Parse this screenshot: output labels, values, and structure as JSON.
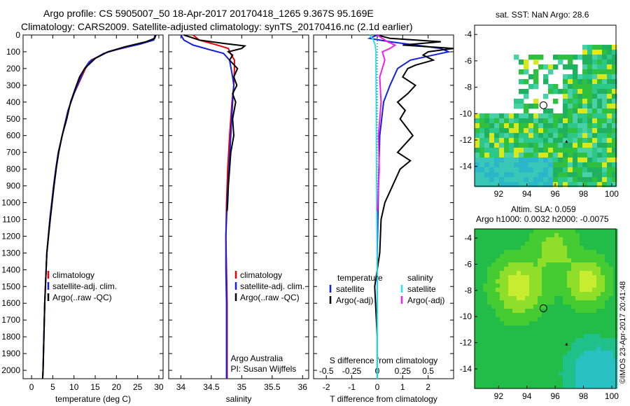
{
  "header": {
    "title_line1": "Argo profile: CS 5905007_50 18-Apr-2017 20170418_1265 9.367S 95.169E",
    "title_line2": "Climatology: CARS2009. Satellite-adjusted climatology: synTS_20170416.nc (2.1d earlier)"
  },
  "colors": {
    "climatology": "#e8000b",
    "satellite": "#1420e0",
    "argo": "#000000",
    "satellite_s": "#25e3f0",
    "argo_s": "#f020f0"
  },
  "chart_data": [
    {
      "id": "temperature",
      "type": "line",
      "xlabel": "temperature (deg C)",
      "ylabel": "",
      "xlim": [
        -2,
        31
      ],
      "ylim": [
        2050,
        0
      ],
      "xticks": [
        0,
        5,
        10,
        15,
        20,
        25,
        30
      ],
      "yticks": [
        0,
        100,
        200,
        300,
        400,
        500,
        600,
        700,
        800,
        900,
        1000,
        1100,
        1200,
        1300,
        1400,
        1500,
        1600,
        1700,
        1800,
        1900,
        2000
      ],
      "legend": [
        "climatology",
        "satellite-adj. clim.",
        "Argo(..raw -QC)"
      ],
      "series": [
        {
          "name": "climatology",
          "color": "climatology",
          "x": [
            29.1,
            28.8,
            26,
            22,
            18,
            14,
            12.7,
            11.8,
            10,
            8.6,
            7.2,
            6.3,
            5.7,
            5.2,
            4.3,
            3.6,
            3.1,
            2.9,
            2.7,
            2.6
          ],
          "y": [
            0,
            25,
            50,
            75,
            100,
            150,
            200,
            250,
            350,
            450,
            600,
            700,
            800,
            900,
            1100,
            1300,
            1600,
            1800,
            2000,
            2050
          ]
        },
        {
          "name": "satellite-adj. clim.",
          "color": "satellite",
          "x": [
            29.1,
            28.8,
            25.5,
            21,
            17,
            13.6,
            12.5,
            11.6,
            10,
            8.6,
            7.2,
            6.3,
            5.7,
            5.2,
            4.3,
            3.6,
            3.1,
            2.9,
            2.7,
            2.6
          ],
          "y": [
            0,
            30,
            55,
            80,
            110,
            160,
            200,
            250,
            350,
            450,
            600,
            700,
            800,
            900,
            1100,
            1300,
            1600,
            1800,
            2000,
            2050
          ]
        },
        {
          "name": "Argo(..raw -QC)",
          "color": "argo",
          "x": [
            29.3,
            29.0,
            27,
            22,
            18,
            15,
            12.5,
            11.3,
            10.3,
            9.2,
            8.3,
            7.2,
            6.4,
            5.9,
            5.3,
            4.4,
            3.6,
            3.1,
            2.9,
            2.7,
            2.6
          ],
          "y": [
            0,
            20,
            40,
            70,
            100,
            140,
            200,
            250,
            320,
            400,
            500,
            600,
            700,
            780,
            900,
            1100,
            1300,
            1600,
            1800,
            2000,
            2050
          ]
        }
      ]
    },
    {
      "id": "salinity",
      "type": "line",
      "xlabel": "salinity",
      "ylabel": "",
      "xlim": [
        33.8,
        36.1
      ],
      "ylim": [
        2050,
        0
      ],
      "xticks": [
        34,
        34.5,
        35,
        35.5,
        36
      ],
      "legend": [
        "climatology",
        "satellite-adj. clim.",
        "Argo(..raw -QC)"
      ],
      "annotation": [
        "Argo Australia",
        "PI: Susan Wijffels"
      ],
      "series": [
        {
          "name": "climatology",
          "color": "climatology",
          "x": [
            34.2,
            34.3,
            34.6,
            34.78,
            34.8,
            34.88,
            34.88,
            34.87,
            34.84,
            34.8,
            34.77,
            34.75,
            34.74,
            34.75,
            34.76,
            34.76,
            34.76,
            34.76
          ],
          "y": [
            0,
            30,
            60,
            80,
            100,
            150,
            200,
            300,
            400,
            600,
            800,
            1000,
            1200,
            1400,
            1600,
            1800,
            2000,
            2050
          ]
        },
        {
          "name": "satellite-adj. clim.",
          "color": "satellite",
          "x": [
            34.0,
            34.05,
            34.2,
            34.5,
            34.7,
            34.8,
            34.85,
            34.87,
            34.85,
            34.82,
            34.79,
            34.76,
            34.74,
            34.74,
            34.75,
            34.75,
            34.75,
            34.75
          ],
          "y": [
            0,
            30,
            60,
            90,
            110,
            150,
            250,
            300,
            400,
            600,
            800,
            1000,
            1200,
            1400,
            1600,
            1800,
            2000,
            2050
          ]
        },
        {
          "name": "Argo(..raw -QC)",
          "color": "argo",
          "x": [
            34.05,
            34.3,
            34.7,
            35.05,
            35.0,
            34.78,
            34.85,
            34.8,
            34.93,
            34.87,
            34.92,
            34.85,
            34.9,
            34.85,
            34.87,
            34.82,
            34.8,
            34.78,
            34.77,
            34.76
          ],
          "y": [
            0,
            30,
            50,
            65,
            80,
            100,
            120,
            150,
            200,
            250,
            300,
            350,
            400,
            500,
            600,
            700,
            800,
            900,
            1000,
            1050
          ]
        }
      ]
    },
    {
      "id": "difference",
      "type": "line",
      "xlabel": "T difference from climatology",
      "ylabel": "",
      "title_top_axis": "S difference from climatology",
      "xlim": [
        -2.5,
        3.0
      ],
      "ylim": [
        2050,
        0
      ],
      "xticks": [
        -2,
        -1,
        0,
        1,
        2
      ],
      "xticks_top": [
        -0.5,
        -0.25,
        0,
        0.25,
        0.5
      ],
      "legend_temperature": [
        "satellite",
        "Argo(-adj)"
      ],
      "legend_salinity": [
        "satellite",
        "Argo(-adj)"
      ],
      "legend_headers": [
        "temperature",
        "salinity"
      ],
      "series": [
        {
          "name": "temperature satellite",
          "color": "satellite",
          "x": [
            0,
            -0.3,
            0.5,
            1.5,
            2.5,
            2.8,
            2.2,
            1.3,
            0.8,
            0.5,
            0.25,
            0.1,
            0.05,
            0.0,
            0.0,
            0.0
          ],
          "y": [
            0,
            20,
            40,
            60,
            80,
            100,
            120,
            150,
            200,
            300,
            400,
            600,
            900,
            1300,
            1800,
            2050
          ]
        },
        {
          "name": "temperature Argo(-adj)",
          "color": "argo",
          "x": [
            0,
            0.5,
            2.5,
            1.0,
            3.0,
            2.0,
            1.8,
            2.2,
            1.5,
            1.2,
            1.0,
            1.5,
            1.2,
            0.8,
            1.1,
            0.9,
            1.4,
            0.8,
            1.3,
            0.9,
            0.6,
            0.3,
            0.15,
            0.1,
            -0.1,
            0.0,
            0.0
          ],
          "y": [
            0,
            20,
            40,
            60,
            80,
            100,
            120,
            150,
            180,
            200,
            250,
            300,
            350,
            400,
            450,
            500,
            600,
            700,
            750,
            800,
            900,
            1000,
            1100,
            1300,
            1500,
            1800,
            2050
          ]
        },
        {
          "name": "salinity satellite",
          "color": "satellite_s",
          "x": [
            -0.3,
            -0.15,
            -0.08,
            -0.05,
            -0.05,
            -0.04,
            -0.03,
            -0.02,
            0.0,
            0.0
          ],
          "y": [
            0,
            30,
            60,
            100,
            200,
            400,
            700,
            1000,
            1500,
            2050
          ]
        },
        {
          "name": "salinity Argo(-adj)",
          "color": "argo_s",
          "x": [
            0.0,
            0.4,
            0.7,
            0.5,
            0.2,
            0.3,
            0.1,
            0.15,
            0.05,
            0.08,
            0.02,
            0.0
          ],
          "y": [
            0,
            40,
            60,
            80,
            100,
            150,
            250,
            400,
            600,
            800,
            1000,
            1050
          ]
        }
      ]
    },
    {
      "id": "sst_map",
      "type": "heatmap",
      "title": "sat. SST: NaN Argo: 28.6",
      "xlim": [
        90.3,
        100.3
      ],
      "ylim": [
        -15.5,
        -3.3
      ],
      "xticks": [
        92,
        94,
        96,
        98,
        100
      ],
      "yticks": [
        -4,
        -6,
        -8,
        -10,
        -12,
        -14
      ],
      "argo_position": {
        "lon": 95.169,
        "lat": -9.367
      },
      "marker": {
        "lon": 96.8,
        "lat": -12.1
      }
    },
    {
      "id": "sla_map",
      "type": "heatmap",
      "title_line1": "Altim. SLA: 0.059",
      "title_line2": "Argo h1000: 0.0032 h2000: -0.0075",
      "xlim": [
        90.3,
        100.3
      ],
      "ylim": [
        -15.5,
        -3.3
      ],
      "xticks": [
        92,
        94,
        96,
        98,
        100
      ],
      "yticks": [
        -4,
        -6,
        -8,
        -10,
        -12,
        -14
      ],
      "argo_position": {
        "lon": 95.169,
        "lat": -9.367
      },
      "marker": {
        "lon": 96.8,
        "lat": -12.1
      }
    }
  ],
  "credit": "©IMOS 23-Apr-2017 20:41:48"
}
